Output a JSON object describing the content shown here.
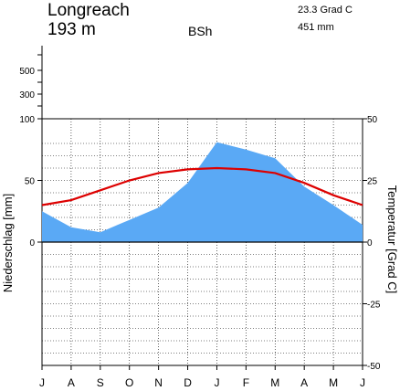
{
  "station": "Longreach",
  "elevation": "193 m",
  "climate_class": "BSh",
  "annual_temp": "23.3 Grad C",
  "annual_precip": "451 mm",
  "chart_data": {
    "type": "line",
    "categories": [
      "J",
      "A",
      "S",
      "O",
      "N",
      "D",
      "J",
      "F",
      "M",
      "A",
      "M",
      "J"
    ],
    "series": [
      {
        "name": "Niederschlag",
        "type": "area",
        "axis": "left",
        "unit": "mm",
        "color": "#5aa9f5",
        "values": [
          25,
          12,
          8,
          18,
          28,
          48,
          81,
          75,
          68,
          45,
          30,
          14
        ]
      },
      {
        "name": "Temperatur",
        "type": "line",
        "axis": "right",
        "unit": "Grad C",
        "color": "#dd0000",
        "values": [
          15,
          17,
          21,
          25,
          28,
          29.5,
          30,
          29.5,
          28,
          24,
          19,
          15
        ]
      }
    ],
    "ylabel": "Niederschlag [mm]",
    "y2label": "Temperatur [Grad C]",
    "ylim_precip": [
      -100,
      100
    ],
    "precip_compressed_ticks": [
      300,
      500
    ],
    "precip_ticks": [
      0,
      50,
      100
    ],
    "temp_ticks": [
      -50,
      -25,
      0,
      25,
      50
    ],
    "ylim_temp": [
      -50,
      50
    ],
    "grid": true
  }
}
